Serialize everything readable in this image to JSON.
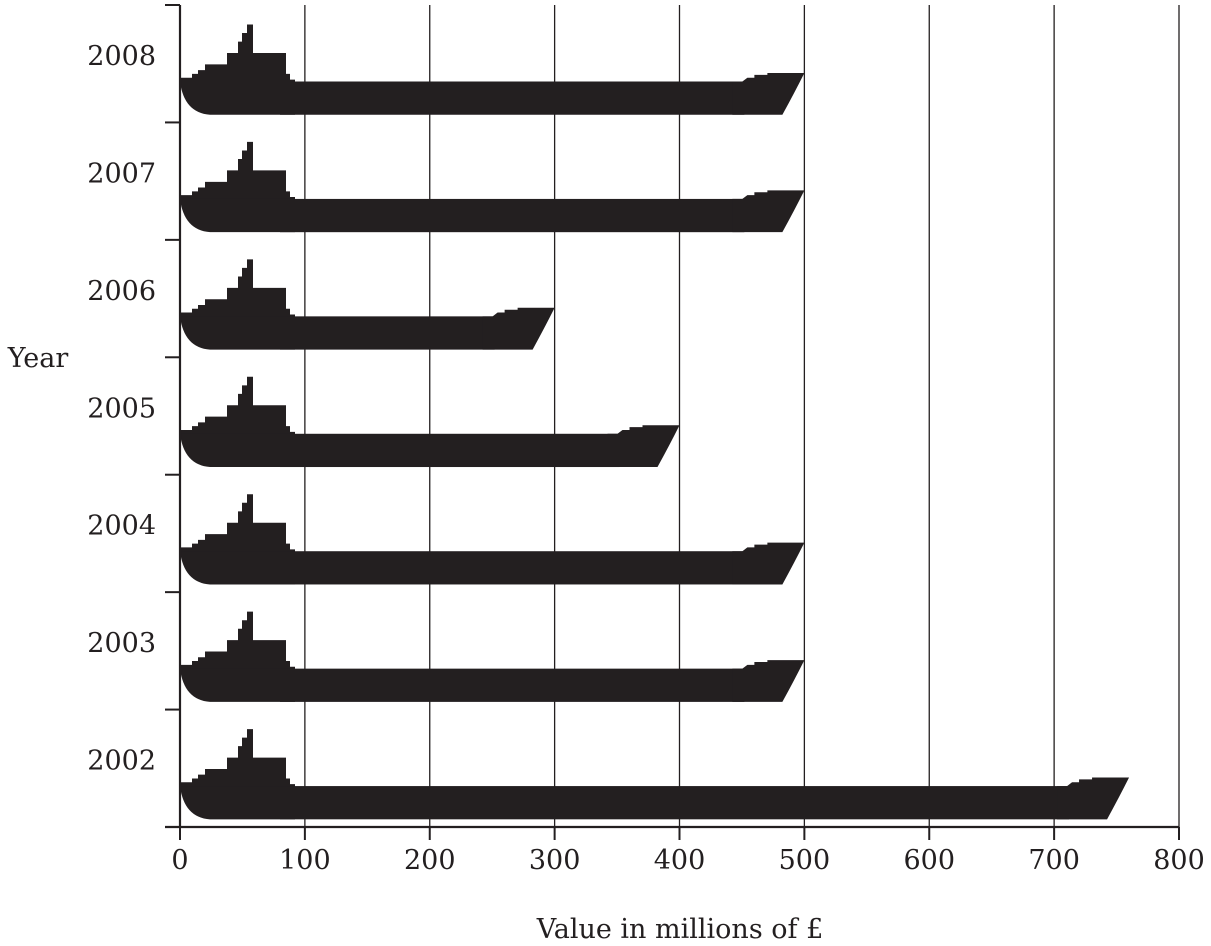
{
  "chart_data": {
    "type": "bar",
    "orientation": "horizontal",
    "mark": "ship-pictogram",
    "categories": [
      "2008",
      "2007",
      "2006",
      "2005",
      "2004",
      "2003",
      "2002"
    ],
    "values": [
      500,
      500,
      300,
      400,
      500,
      500,
      760
    ],
    "xlabel": "Value in millions of £",
    "ylabel": "Year",
    "xlim": [
      0,
      800
    ],
    "xticks": [
      0,
      100,
      200,
      300,
      400,
      500,
      600,
      700,
      800
    ],
    "grid": "vertical",
    "colors": {
      "ink": "#231f20",
      "background": "#ffffff"
    }
  }
}
